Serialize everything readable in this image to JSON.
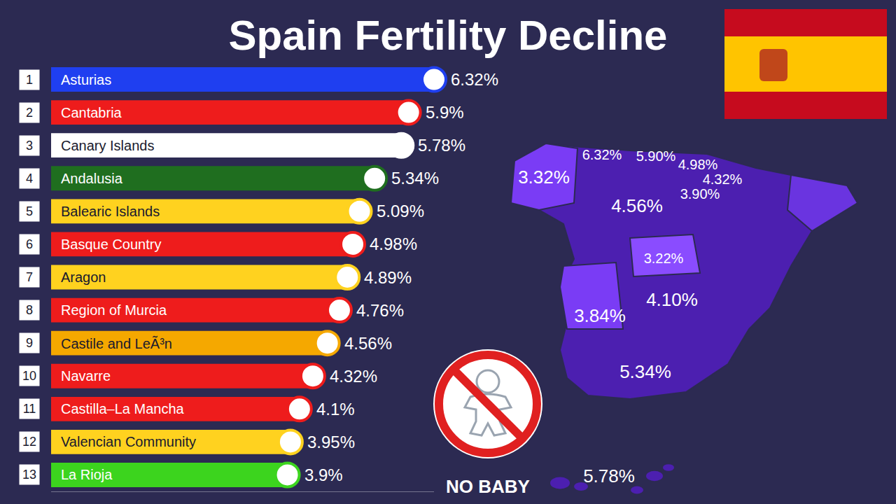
{
  "chart_data": {
    "type": "bar",
    "title": "Spain Fertility Decline",
    "orientation": "horizontal",
    "categories": [
      "Asturias",
      "Cantabria",
      "Canary Islands",
      "Andalusia",
      "Balearic Islands",
      "Basque Country",
      "Aragon",
      "Region of Murcia",
      "Castile and LeÃ³n",
      "Navarre",
      "Castilla–La Mancha",
      "Valencian Community",
      "La Rioja"
    ],
    "ranks": [
      1,
      2,
      3,
      4,
      5,
      6,
      7,
      8,
      9,
      10,
      11,
      12,
      13
    ],
    "values": [
      6.32,
      5.9,
      5.78,
      5.34,
      5.09,
      4.98,
      4.89,
      4.76,
      4.56,
      4.32,
      4.1,
      3.95,
      3.9
    ],
    "value_labels": [
      "6.32%",
      "5.9%",
      "5.78%",
      "5.34%",
      "5.09%",
      "4.98%",
      "4.89%",
      "4.76%",
      "4.56%",
      "4.32%",
      "4.1%",
      "3.95%",
      "3.9%"
    ],
    "colors": [
      "#1f3ff0",
      "#ee1c1c",
      "#ffffff",
      "#1f6e1f",
      "#ffd21f",
      "#ee1c1c",
      "#ffd21f",
      "#ee1c1c",
      "#f5a800",
      "#ee1c1c",
      "#ee1c1c",
      "#ffd21f",
      "#3cd41e"
    ],
    "xlim": [
      0,
      6.32
    ],
    "xticks": [],
    "tick_labels": false,
    "data_labels": true,
    "grid": false
  },
  "map": {
    "labels": [
      "3.32%",
      "6.32%",
      "5.90%",
      "4.98%",
      "4.32%",
      "3.90%",
      "4.56%",
      "3.22%",
      "4.10%",
      "3.84%",
      "5.34%",
      "5.78%"
    ]
  },
  "badge": {
    "text": "NO BABY"
  }
}
